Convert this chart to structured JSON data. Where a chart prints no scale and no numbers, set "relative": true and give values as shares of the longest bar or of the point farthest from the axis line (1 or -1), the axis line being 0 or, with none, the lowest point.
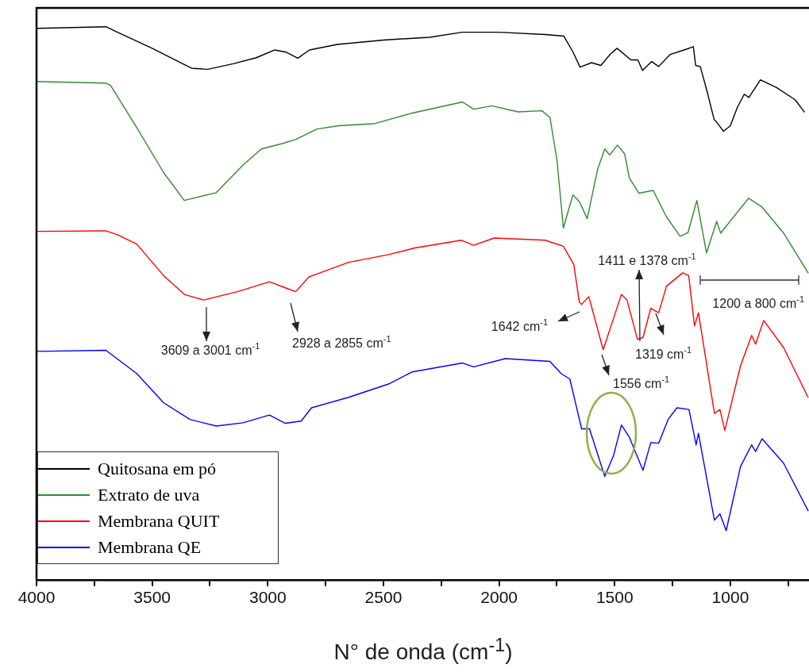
{
  "chart_data": {
    "type": "line",
    "relative": true,
    "xlabel": "N° de onda (cm$^{-1}$)",
    "xlim": [
      4000,
      660
    ],
    "xticks": [
      4000,
      {
        "value": 3750,
        "label": null
      },
      3500,
      {
        "value": 3250,
        "label": null
      },
      3000,
      {
        "value": 2750,
        "label": null
      },
      2500,
      {
        "value": 2250,
        "label": null
      },
      2000,
      {
        "value": 1750,
        "label": null
      },
      1500,
      {
        "value": 1250,
        "label": null
      },
      1000,
      {
        "value": 750,
        "label": null
      }
    ],
    "legend": "bottom left",
    "grid": false,
    "marker": "none",
    "line_style": "solid",
    "series": [
      {
        "name": "Quitosana em pó",
        "color": "#000000",
        "x": [
          4000,
          3700,
          3650,
          3500,
          3400,
          3330,
          3260,
          3150,
          3050,
          2970,
          2920,
          2870,
          2820,
          2700,
          2500,
          2300,
          2160,
          2000,
          1800,
          1720,
          1680,
          1650,
          1600,
          1560,
          1520,
          1490,
          1430,
          1400,
          1380,
          1340,
          1310,
          1260,
          1200,
          1160,
          1150,
          1130,
          1100,
          1070,
          1060,
          1030,
          1000,
          970,
          940,
          920,
          870,
          800,
          720,
          680
        ],
        "values": [
          0.997,
          1,
          0.99,
          0.961,
          0.94,
          0.925,
          0.923,
          0.933,
          0.944,
          0.958,
          0.954,
          0.943,
          0.958,
          0.968,
          0.976,
          0.981,
          0.99,
          0.99,
          0.986,
          0.983,
          0.954,
          0.927,
          0.935,
          0.93,
          0.95,
          0.961,
          0.94,
          0.94,
          0.921,
          0.937,
          0.928,
          0.95,
          0.958,
          0.964,
          0.93,
          0.928,
          0.882,
          0.832,
          0.828,
          0.811,
          0.821,
          0.854,
          0.878,
          0.872,
          0.904,
          0.89,
          0.868,
          0.846
        ]
      },
      {
        "name": "Extrato de uva",
        "color": "#2e8b2e",
        "x": [
          4000,
          3700,
          3680,
          3567,
          3450,
          3361,
          3223,
          3107,
          3028,
          2935,
          2880,
          2787,
          2694,
          2536,
          2375,
          2158,
          2110,
          2031,
          1918,
          1815,
          1780,
          1750,
          1722,
          1681,
          1653,
          1619,
          1574,
          1543,
          1522,
          1488,
          1457,
          1437,
          1395,
          1334,
          1276,
          1217,
          1183,
          1145,
          1103,
          1059,
          1042,
          921,
          863,
          770,
          664
        ],
        "values": [
          0.901,
          0.898,
          0.894,
          0.818,
          0.736,
          0.686,
          0.7,
          0.75,
          0.779,
          0.789,
          0.796,
          0.815,
          0.821,
          0.825,
          0.844,
          0.864,
          0.851,
          0.857,
          0.846,
          0.848,
          0.836,
          0.76,
          0.636,
          0.696,
          0.684,
          0.653,
          0.742,
          0.779,
          0.768,
          0.786,
          0.77,
          0.727,
          0.699,
          0.704,
          0.656,
          0.621,
          0.628,
          0.686,
          0.591,
          0.648,
          0.627,
          0.69,
          0.674,
          0.627,
          0.555
        ]
      },
      {
        "name": "Membrana QUIT",
        "color": "#ff0000",
        "x": [
          4000,
          3700,
          3650,
          3567,
          3450,
          3361,
          3278,
          3131,
          2993,
          2924,
          2880,
          2821,
          2650,
          2478,
          2364,
          2162,
          2110,
          2021,
          1801,
          1722,
          1677,
          1653,
          1643,
          1612,
          1550,
          1471,
          1447,
          1402,
          1378,
          1344,
          1310,
          1276,
          1206,
          1180,
          1155,
          1138,
          1069,
          1045,
          1024,
          956,
          908,
          891,
          856,
          770,
          664
        ],
        "values": [
          0.63,
          0.631,
          0.624,
          0.607,
          0.55,
          0.516,
          0.506,
          0.521,
          0.539,
          0.528,
          0.521,
          0.548,
          0.574,
          0.588,
          0.6,
          0.614,
          0.605,
          0.618,
          0.614,
          0.603,
          0.57,
          0.502,
          0.498,
          0.512,
          0.416,
          0.516,
          0.506,
          0.435,
          0.438,
          0.491,
          0.483,
          0.531,
          0.555,
          0.55,
          0.459,
          0.483,
          0.301,
          0.308,
          0.27,
          0.387,
          0.442,
          0.426,
          0.469,
          0.42,
          0.33
        ]
      },
      {
        "name": "Membrana QE",
        "color": "#0000ff",
        "x": [
          4000,
          3700,
          3567,
          3450,
          3337,
          3223,
          3107,
          2993,
          2924,
          2856,
          2811,
          2650,
          2478,
          2375,
          2158,
          2110,
          1973,
          1780,
          1732,
          1694,
          1643,
          1609,
          1543,
          1505,
          1471,
          1437,
          1378,
          1344,
          1310,
          1269,
          1231,
          1179,
          1148,
          1138,
          1069,
          1045,
          1018,
          956,
          908,
          891,
          863,
          770,
          664
        ],
        "values": [
          0.413,
          0.415,
          0.373,
          0.32,
          0.29,
          0.278,
          0.284,
          0.298,
          0.283,
          0.287,
          0.311,
          0.33,
          0.354,
          0.376,
          0.392,
          0.385,
          0.4,
          0.395,
          0.373,
          0.363,
          0.273,
          0.273,
          0.187,
          0.225,
          0.28,
          0.258,
          0.198,
          0.248,
          0.247,
          0.29,
          0.311,
          0.308,
          0.244,
          0.265,
          0.108,
          0.119,
          0.089,
          0.205,
          0.244,
          0.232,
          0.255,
          0.211,
          0.125
        ]
      }
    ],
    "annotations": [
      "3609 a 3001 cm$^{-1}$",
      "2928 a 2855 cm$^{-1}$",
      "1642 cm$^{-1}$",
      "1556 cm$^{-1}$",
      "1411 e 1378 cm$^{-1}$",
      "1319 cm$^{-1}$",
      "1200 a 800 cm$^{-1}$"
    ]
  }
}
